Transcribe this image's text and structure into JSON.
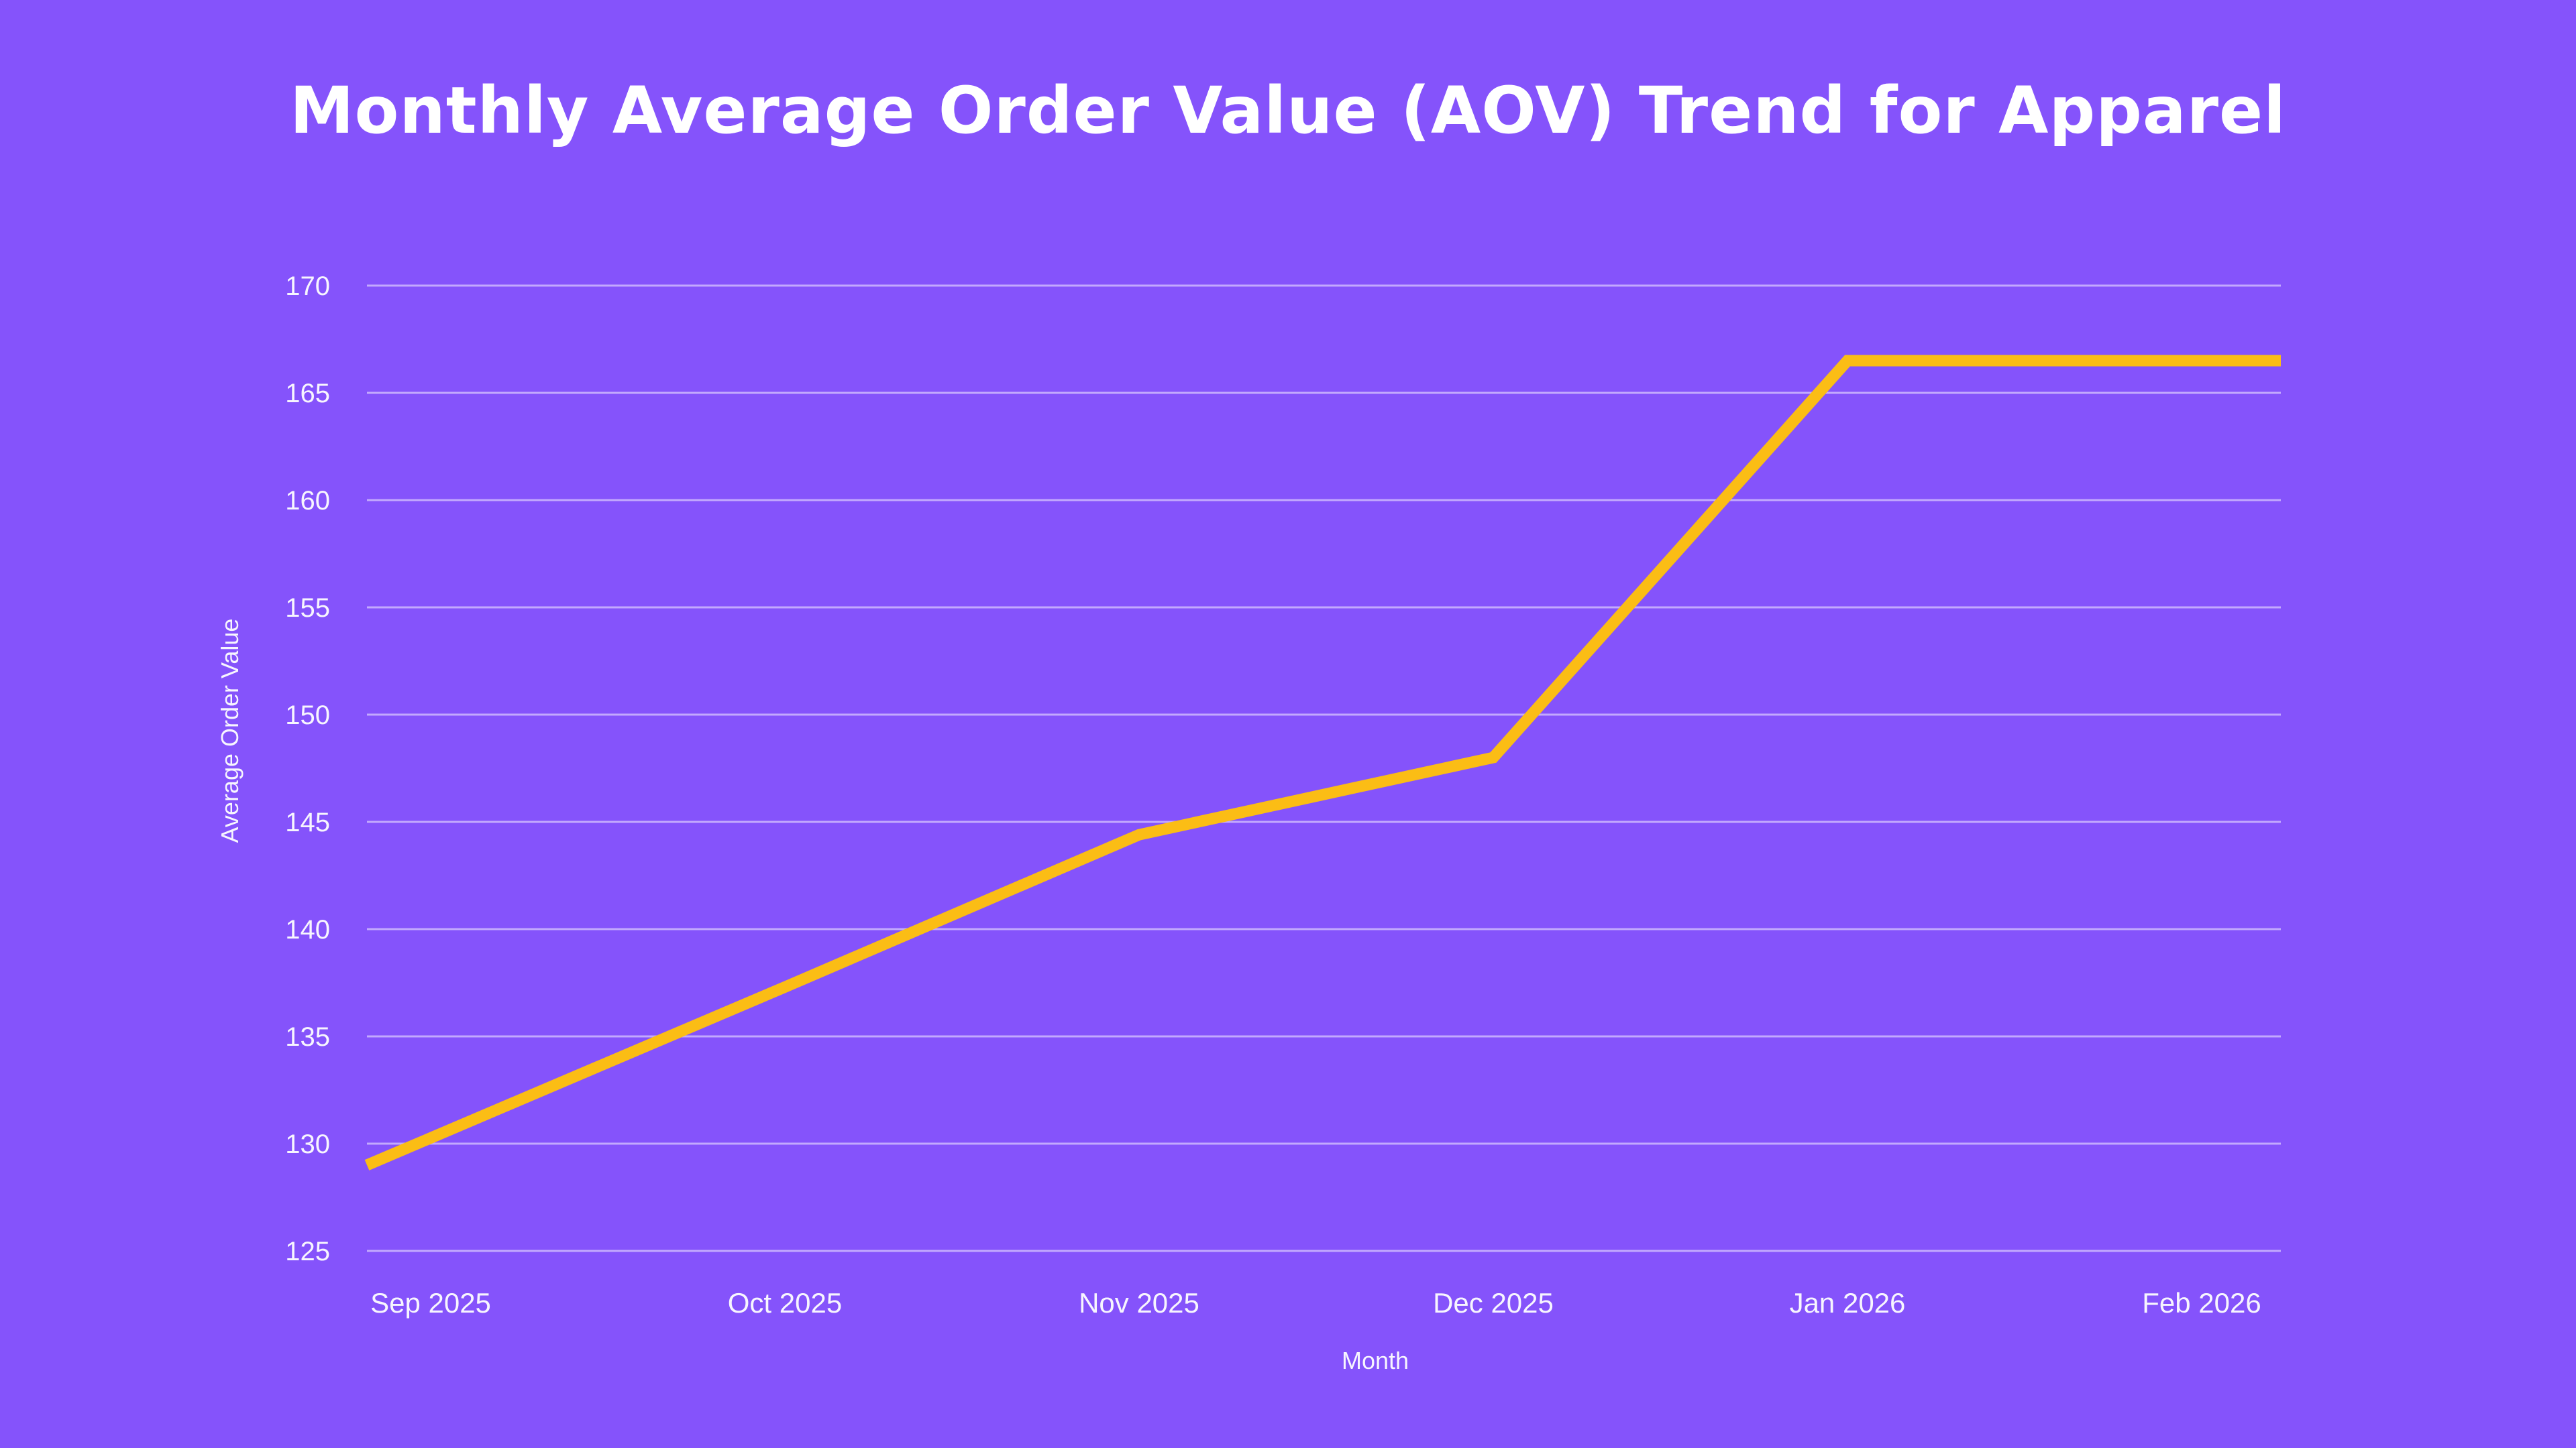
{
  "chart_data": {
    "type": "line",
    "title": "Monthly Average Order Value (AOV) Trend for Apparel",
    "xlabel": "Month",
    "ylabel": "Average Order Value",
    "categories": [
      "Sep 2025",
      "Oct 2025",
      "Nov 2025",
      "Dec 2025",
      "Jan 2026",
      "Feb 2026"
    ],
    "series": [
      {
        "name": "Average Order Value",
        "values": [
          129,
          137.3,
          144.4,
          148,
          166.5,
          166.5
        ]
      }
    ],
    "ylim": [
      125,
      170
    ],
    "yticks": [
      125,
      130,
      135,
      140,
      145,
      150,
      155,
      160,
      165,
      170
    ],
    "grid": true,
    "legend": false,
    "colors": {
      "background": "#8553FB",
      "line": "#FBBD15",
      "grid": "rgba(245,241,255,0.55)",
      "text": "#F7F5FE",
      "title": "#FFFFFF"
    }
  }
}
